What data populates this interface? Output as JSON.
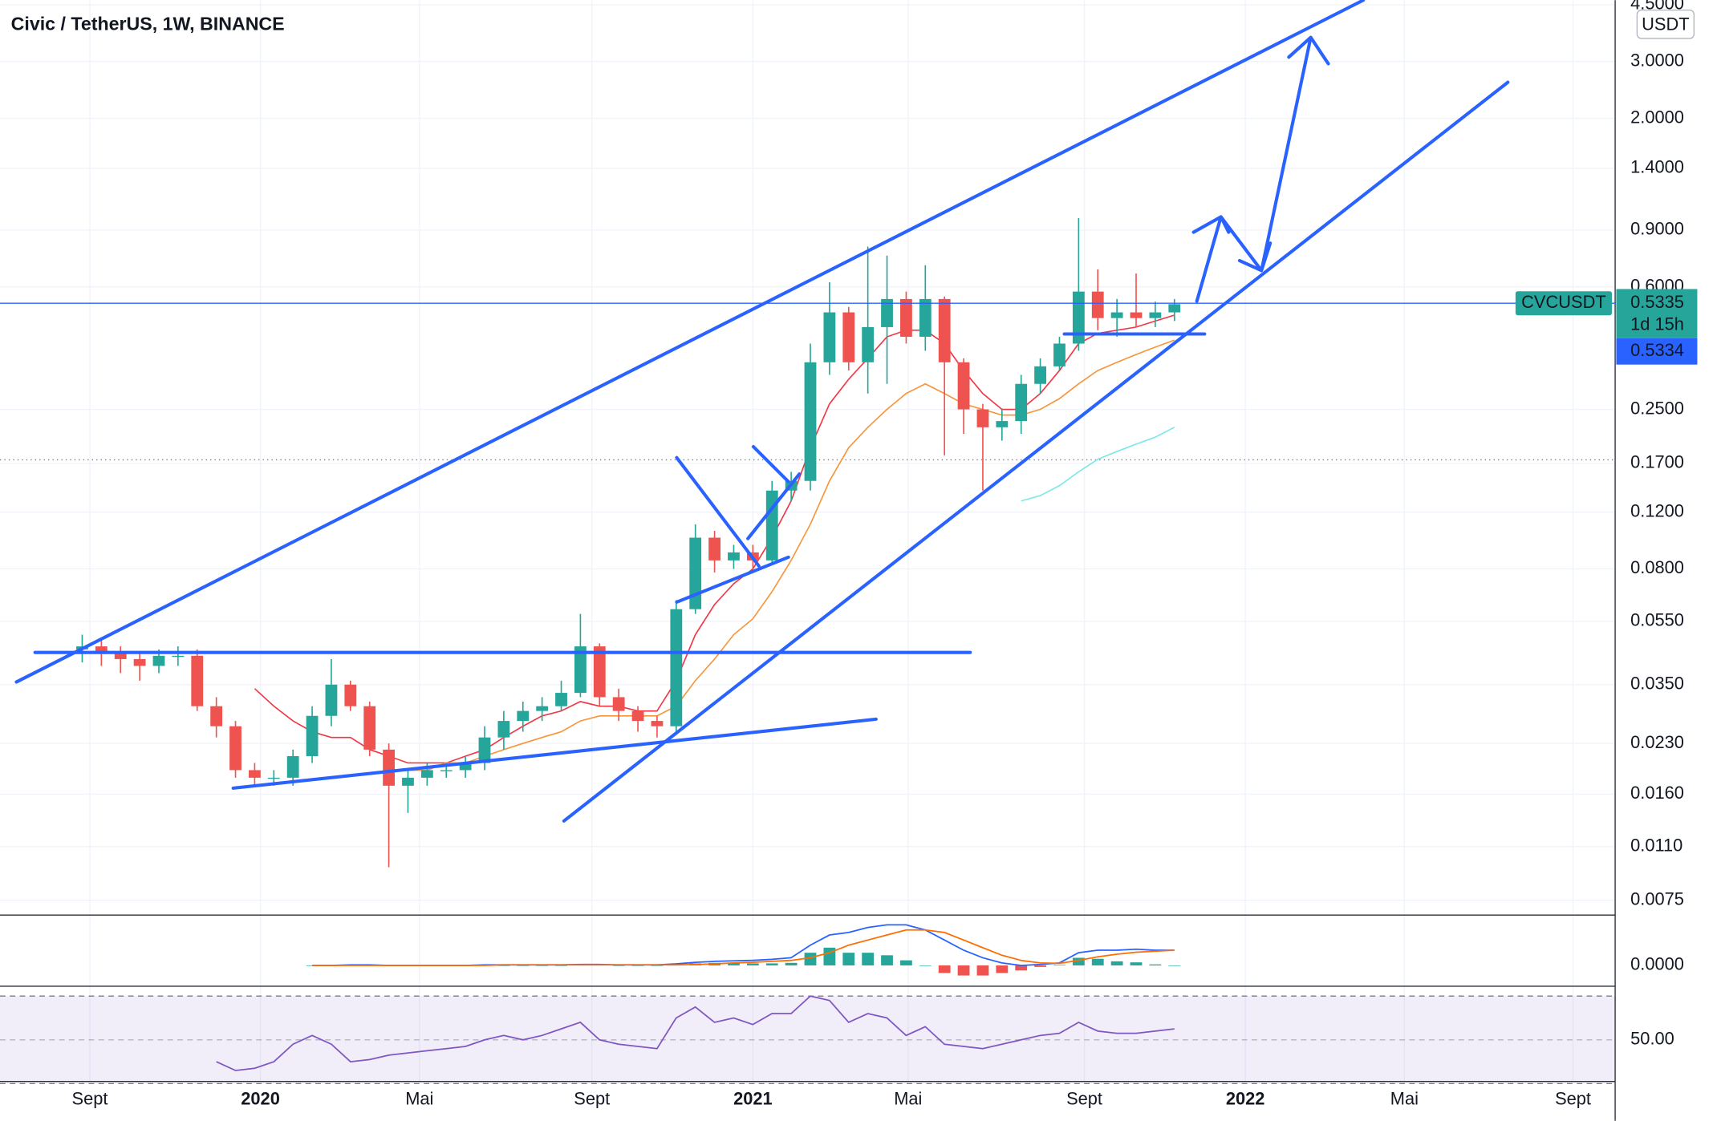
{
  "chart_data": {
    "type": "candlestick",
    "title": "Civic / TetherUS, 1W, BINANCE",
    "currency": "USDT",
    "symbol": "CVCUSDT",
    "last_price": 0.5335,
    "countdown": "1d 15h",
    "price_label": 0.5334,
    "log_scale": true,
    "grid": true,
    "up_color": "#26a69a",
    "down_color": "#ef5350",
    "xlim": [
      -4.29,
      80
    ],
    "xticks": [
      {
        "value": 0.4,
        "label": "Sept"
      },
      {
        "value": 9.3,
        "label": "2020"
      },
      {
        "value": 17.6,
        "label": "Mai"
      },
      {
        "value": 26.6,
        "label": "Sept"
      },
      {
        "value": 35.0,
        "label": "2021"
      },
      {
        "value": 43.1,
        "label": "Mai"
      },
      {
        "value": 52.3,
        "label": "Sept"
      },
      {
        "value": 60.7,
        "label": "2022"
      },
      {
        "value": 69.0,
        "label": "Mai"
      },
      {
        "value": 77.8,
        "label": "Sept"
      }
    ],
    "ylim": [
      0.0068,
      4.65
    ],
    "yticks": [
      {
        "value": 4.5,
        "label": "4.5000"
      },
      {
        "value": 3,
        "label": "3.0000"
      },
      {
        "value": 2,
        "label": "2.0000"
      },
      {
        "value": 1.4,
        "label": "1.4000"
      },
      {
        "value": 0.9,
        "label": "0.9000"
      },
      {
        "value": 0.6,
        "label": "0.6000"
      },
      {
        "value": 0.25,
        "label": "0.2500"
      },
      {
        "value": 0.17,
        "label": "0.1700"
      },
      {
        "value": 0.12,
        "label": "0.1200"
      },
      {
        "value": 0.08,
        "label": "0.0800"
      },
      {
        "value": 0.055,
        "label": "0.0550"
      },
      {
        "value": 0.035,
        "label": "0.0350"
      },
      {
        "value": 0.023,
        "label": "0.0230"
      },
      {
        "value": 0.016,
        "label": "0.0160"
      },
      {
        "value": 0.011,
        "label": "0.0110"
      },
      {
        "value": 0.0075,
        "label": "0.0075"
      }
    ],
    "open": [
      0.045,
      0.046,
      0.044,
      0.042,
      0.04,
      0.043,
      0.043,
      0.03,
      0.026,
      0.019,
      0.018,
      0.018,
      0.021,
      0.028,
      0.035,
      0.03,
      0.022,
      0.017,
      0.018,
      0.019,
      0.019,
      0.02,
      0.024,
      0.027,
      0.029,
      0.03,
      0.033,
      0.046,
      0.032,
      0.029,
      0.027,
      0.026,
      0.06,
      0.1,
      0.085,
      0.09,
      0.085,
      0.14,
      0.15,
      0.35,
      0.5,
      0.35,
      0.45,
      0.55,
      0.42,
      0.55,
      0.35,
      0.25,
      0.22,
      0.23,
      0.3,
      0.34,
      0.4,
      0.58,
      0.48,
      0.5,
      0.48,
      0.5
    ],
    "high": [
      0.05,
      0.048,
      0.046,
      0.044,
      0.045,
      0.046,
      0.045,
      0.032,
      0.027,
      0.02,
      0.019,
      0.022,
      0.03,
      0.042,
      0.036,
      0.031,
      0.023,
      0.019,
      0.02,
      0.02,
      0.021,
      0.026,
      0.029,
      0.031,
      0.032,
      0.036,
      0.058,
      0.047,
      0.034,
      0.03,
      0.028,
      0.064,
      0.11,
      0.105,
      0.095,
      0.095,
      0.15,
      0.16,
      0.4,
      0.62,
      0.52,
      0.8,
      0.75,
      0.58,
      0.7,
      0.56,
      0.36,
      0.26,
      0.25,
      0.32,
      0.36,
      0.42,
      0.98,
      0.68,
      0.55,
      0.66,
      0.54,
      0.55
    ],
    "low": [
      0.041,
      0.04,
      0.038,
      0.036,
      0.038,
      0.04,
      0.029,
      0.024,
      0.018,
      0.017,
      0.017,
      0.017,
      0.02,
      0.026,
      0.029,
      0.021,
      0.0095,
      0.014,
      0.017,
      0.018,
      0.018,
      0.019,
      0.022,
      0.025,
      0.027,
      0.029,
      0.032,
      0.03,
      0.027,
      0.025,
      0.024,
      0.025,
      0.058,
      0.078,
      0.08,
      0.08,
      0.083,
      0.13,
      0.14,
      0.32,
      0.33,
      0.28,
      0.3,
      0.4,
      0.38,
      0.18,
      0.21,
      0.14,
      0.2,
      0.21,
      0.28,
      0.33,
      0.38,
      0.44,
      0.42,
      0.45,
      0.45,
      0.47
    ],
    "close": [
      0.046,
      0.044,
      0.042,
      0.04,
      0.043,
      0.043,
      0.03,
      0.026,
      0.019,
      0.018,
      0.018,
      0.021,
      0.028,
      0.035,
      0.03,
      0.022,
      0.017,
      0.018,
      0.019,
      0.019,
      0.02,
      0.024,
      0.027,
      0.029,
      0.03,
      0.033,
      0.046,
      0.032,
      0.029,
      0.027,
      0.026,
      0.06,
      0.1,
      0.085,
      0.09,
      0.085,
      0.14,
      0.15,
      0.35,
      0.5,
      0.35,
      0.45,
      0.55,
      0.42,
      0.55,
      0.35,
      0.25,
      0.22,
      0.23,
      0.3,
      0.34,
      0.4,
      0.58,
      0.48,
      0.5,
      0.48,
      0.5,
      0.53
    ],
    "overlays": [
      {
        "color": "#f23645",
        "values": [
          null,
          null,
          null,
          null,
          null,
          null,
          null,
          null,
          null,
          0.034,
          0.03,
          0.027,
          0.025,
          0.024,
          0.024,
          0.022,
          0.021,
          0.02,
          0.02,
          0.02,
          0.021,
          0.022,
          0.024,
          0.026,
          0.028,
          0.029,
          0.031,
          0.03,
          0.03,
          0.029,
          0.029,
          0.036,
          0.05,
          0.062,
          0.072,
          0.08,
          0.1,
          0.13,
          0.19,
          0.26,
          0.31,
          0.36,
          0.42,
          0.44,
          0.44,
          0.4,
          0.33,
          0.28,
          0.25,
          0.25,
          0.28,
          0.33,
          0.4,
          0.43,
          0.44,
          0.45,
          0.47,
          0.49
        ]
      },
      {
        "color": "#f7953b",
        "values": [
          null,
          null,
          null,
          null,
          null,
          null,
          null,
          null,
          null,
          null,
          null,
          null,
          null,
          null,
          null,
          null,
          null,
          0.019,
          0.019,
          0.02,
          0.02,
          0.021,
          0.022,
          0.023,
          0.024,
          0.025,
          0.027,
          0.028,
          0.028,
          0.028,
          0.028,
          0.03,
          0.036,
          0.042,
          0.05,
          0.056,
          0.068,
          0.085,
          0.11,
          0.15,
          0.19,
          0.22,
          0.25,
          0.28,
          0.3,
          0.28,
          0.26,
          0.25,
          0.24,
          0.24,
          0.25,
          0.27,
          0.3,
          0.33,
          0.35,
          0.37,
          0.39,
          0.41
        ]
      },
      {
        "color": "#7ee8e8",
        "values": [
          null,
          null,
          null,
          null,
          null,
          null,
          null,
          null,
          null,
          null,
          null,
          null,
          null,
          null,
          null,
          null,
          null,
          null,
          null,
          null,
          null,
          null,
          null,
          null,
          null,
          null,
          null,
          null,
          null,
          null,
          null,
          null,
          null,
          null,
          null,
          null,
          null,
          null,
          null,
          null,
          null,
          null,
          null,
          null,
          null,
          null,
          null,
          null,
          null,
          0.13,
          0.135,
          0.145,
          0.16,
          0.175,
          0.185,
          0.195,
          0.205,
          0.22
        ]
      }
    ],
    "macd": {
      "ylim": [
        -0.0346,
        0.095
      ],
      "yticks": [
        {
          "value": 0,
          "label": "0.0000"
        }
      ],
      "macd_color": "#2962ff",
      "signal_color": "#ff6d00",
      "up_color": "#26a69a",
      "down_color": "#ef5350",
      "macd": [
        null,
        null,
        null,
        null,
        null,
        null,
        null,
        null,
        null,
        null,
        null,
        null,
        0.0,
        0.0,
        0.001,
        0.001,
        0.0,
        0.0,
        0.0,
        0.0,
        0.0,
        0.001,
        0.001,
        0.001,
        0.001,
        0.001,
        0.002,
        0.002,
        0.001,
        0.001,
        0.001,
        0.003,
        0.006,
        0.008,
        0.009,
        0.01,
        0.012,
        0.015,
        0.04,
        0.06,
        0.065,
        0.075,
        0.08,
        0.08,
        0.07,
        0.05,
        0.03,
        0.015,
        0.005,
        0.0,
        0.002,
        0.005,
        0.025,
        0.03,
        0.03,
        0.032,
        0.03,
        0.03
      ],
      "signal": [
        null,
        null,
        null,
        null,
        null,
        null,
        null,
        null,
        null,
        null,
        null,
        null,
        0,
        0,
        0,
        0,
        0,
        0,
        0,
        0,
        0,
        0,
        0.001,
        0.001,
        0.001,
        0.001,
        0.001,
        0.001,
        0.001,
        0.001,
        0.001,
        0.001,
        0.002,
        0.003,
        0.005,
        0.006,
        0.008,
        0.01,
        0.015,
        0.025,
        0.04,
        0.05,
        0.06,
        0.07,
        0.07,
        0.065,
        0.05,
        0.035,
        0.02,
        0.01,
        0.005,
        0.004,
        0.01,
        0.017,
        0.022,
        0.026,
        0.028,
        0.03
      ],
      "histogram": [
        null,
        null,
        null,
        null,
        null,
        null,
        null,
        null,
        null,
        null,
        null,
        null,
        0,
        0,
        0.001,
        0.001,
        0,
        0,
        0,
        0,
        0,
        0.001,
        0,
        0,
        0,
        0,
        0.001,
        0.001,
        0,
        0,
        0,
        0.002,
        0.004,
        0.005,
        0.004,
        0.004,
        0.004,
        0.005,
        0.025,
        0.035,
        0.025,
        0.025,
        0.02,
        0.01,
        0.0,
        -0.015,
        -0.02,
        -0.02,
        -0.015,
        -0.01,
        -0.003,
        0.001,
        0.015,
        0.013,
        0.008,
        0.006,
        0.002,
        0.0
      ]
    },
    "rsi": {
      "ylim": [
        32.5,
        73.5
      ],
      "yticks": [
        {
          "value": 50,
          "label": "50.00"
        }
      ],
      "bands": [
        30,
        70
      ],
      "color": "#7e57c2",
      "values": [
        null,
        null,
        null,
        null,
        null,
        null,
        null,
        40,
        36,
        37,
        40,
        48,
        52,
        48,
        40,
        41,
        43,
        44,
        45,
        46,
        47,
        50,
        52,
        50,
        52,
        55,
        58,
        50,
        48,
        47,
        46,
        60,
        65,
        58,
        60,
        57,
        62,
        62,
        70,
        68,
        58,
        62,
        60,
        52,
        56,
        48,
        47,
        46,
        48,
        50,
        52,
        53,
        58,
        54,
        53,
        53,
        54,
        55
      ]
    }
  }
}
